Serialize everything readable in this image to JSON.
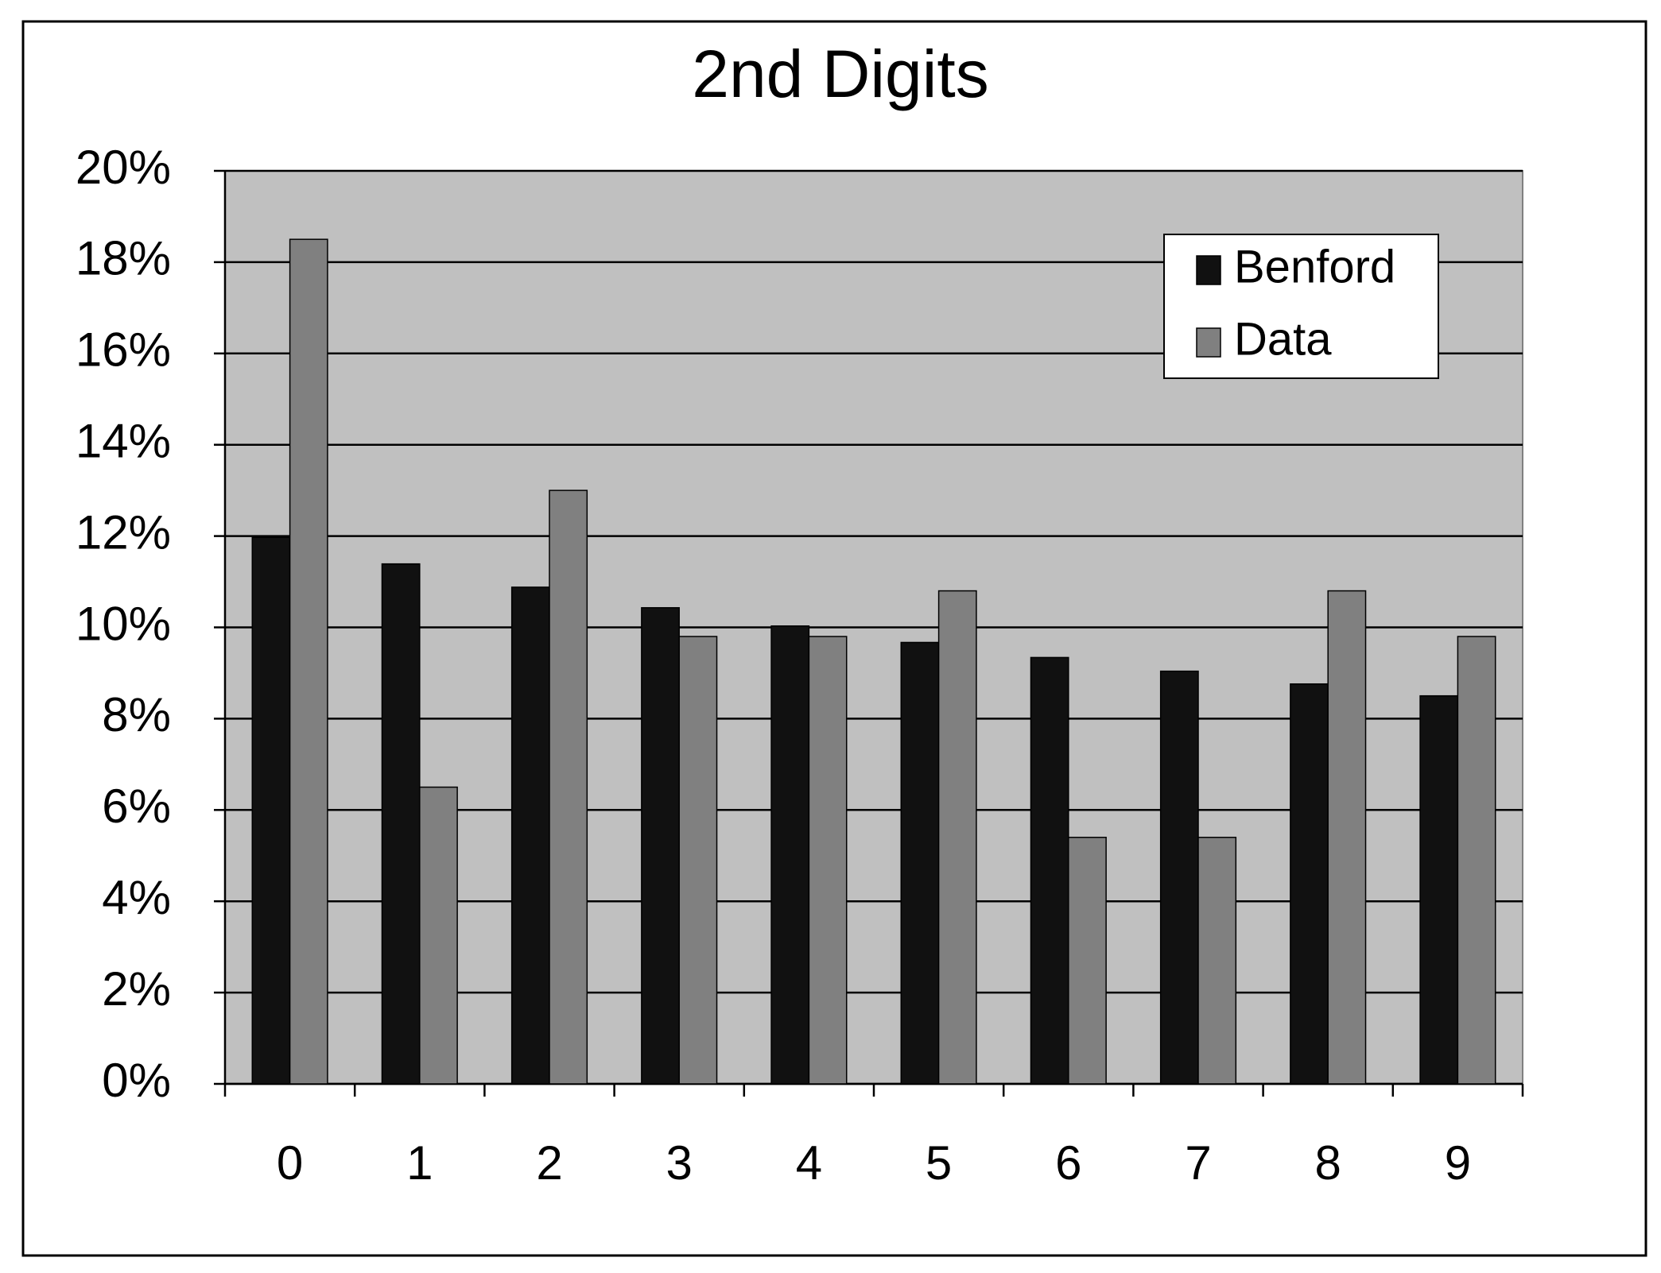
{
  "chart_data": {
    "type": "bar",
    "title": "2nd Digits",
    "categories": [
      "0",
      "1",
      "2",
      "3",
      "4",
      "5",
      "6",
      "7",
      "8",
      "9"
    ],
    "series": [
      {
        "name": "Benford",
        "color": "#111111",
        "values": [
          11.97,
          11.39,
          10.88,
          10.43,
          10.03,
          9.67,
          9.34,
          9.04,
          8.76,
          8.5
        ]
      },
      {
        "name": "Data",
        "color": "#808080",
        "values": [
          18.5,
          6.5,
          13.0,
          9.8,
          9.8,
          10.8,
          5.4,
          5.4,
          10.8,
          9.8
        ]
      }
    ],
    "ylim": [
      0,
      20
    ],
    "yticks": [
      {
        "value": 0,
        "label": "0%"
      },
      {
        "value": 2,
        "label": "2%"
      },
      {
        "value": 4,
        "label": "4%"
      },
      {
        "value": 6,
        "label": "6%"
      },
      {
        "value": 8,
        "label": "8%"
      },
      {
        "value": 10,
        "label": "10%"
      },
      {
        "value": 12,
        "label": "12%"
      },
      {
        "value": 14,
        "label": "14%"
      },
      {
        "value": 16,
        "label": "16%"
      },
      {
        "value": 18,
        "label": "18%"
      },
      {
        "value": 20,
        "label": "20%"
      }
    ],
    "grid": true,
    "legend": "upper right",
    "plot_background": "#c0c0c0"
  }
}
